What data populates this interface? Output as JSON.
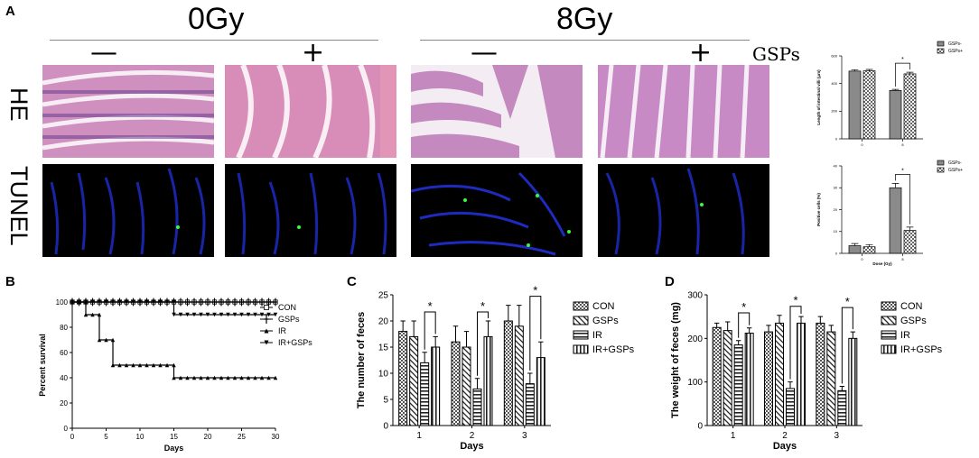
{
  "panels": {
    "a": {
      "label": "A"
    },
    "b": {
      "label": "B"
    },
    "c": {
      "label": "C"
    },
    "d": {
      "label": "D"
    }
  },
  "panel_a": {
    "dose_groups": [
      "0Gy",
      "8Gy"
    ],
    "treatment_signs": [
      "—",
      "+",
      "—",
      "+"
    ],
    "treatment_label": "GSPs",
    "row_labels": [
      "HE",
      "TUNEL"
    ]
  },
  "chart_data": [
    {
      "id": "villi",
      "type": "bar",
      "categories": [
        "0",
        "8"
      ],
      "series": [
        {
          "name": "GSPs-",
          "values": [
            490,
            350
          ],
          "errors": [
            10,
            8
          ]
        },
        {
          "name": "GSPs+",
          "values": [
            492,
            470
          ],
          "errors": [
            10,
            12
          ]
        }
      ],
      "xlabel": "",
      "ylabel": "Length of intestinal villi (μm)",
      "yticks": [
        0,
        200,
        400,
        600
      ],
      "ylim": [
        0,
        600
      ],
      "legend": "top-right",
      "significance": [
        {
          "category": "8",
          "label": "*"
        }
      ]
    },
    {
      "id": "positive",
      "type": "bar",
      "categories": [
        "0",
        "8"
      ],
      "series": [
        {
          "name": "GSPs-",
          "values": [
            3.5,
            30
          ],
          "errors": [
            1,
            2
          ]
        },
        {
          "name": "GSPs+",
          "values": [
            3,
            10.5
          ],
          "errors": [
            1,
            1.5
          ]
        }
      ],
      "xlabel": "Dose (Gy)",
      "ylabel": "Positive cells (%)",
      "yticks": [
        0,
        10,
        20,
        30,
        40
      ],
      "ylim": [
        0,
        40
      ],
      "legend": "top-right",
      "significance": [
        {
          "category": "8",
          "label": "*"
        }
      ]
    },
    {
      "id": "survival",
      "type": "line",
      "xlabel": "Days",
      "ylabel": "Percent survival",
      "xticks": [
        0,
        5,
        10,
        15,
        20,
        25,
        30
      ],
      "yticks": [
        0,
        20,
        40,
        60,
        80,
        100
      ],
      "xlim": [
        0,
        30
      ],
      "ylim": [
        0,
        100
      ],
      "legend": "right",
      "series": [
        {
          "name": "CON",
          "marker": "square",
          "steps": [
            [
              0,
              100
            ],
            [
              30,
              100
            ]
          ]
        },
        {
          "name": "GSPs",
          "marker": "plus",
          "steps": [
            [
              0,
              100
            ],
            [
              30,
              100
            ]
          ]
        },
        {
          "name": "IR",
          "marker": "triangle-up",
          "steps": [
            [
              0,
              100
            ],
            [
              2,
              100
            ],
            [
              2,
              90
            ],
            [
              4,
              90
            ],
            [
              4,
              70
            ],
            [
              6,
              70
            ],
            [
              6,
              50
            ],
            [
              15,
              50
            ],
            [
              15,
              40
            ],
            [
              30,
              40
            ]
          ]
        },
        {
          "name": "IR+GSPs",
          "marker": "triangle-down",
          "steps": [
            [
              0,
              100
            ],
            [
              15,
              100
            ],
            [
              15,
              90
            ],
            [
              30,
              90
            ]
          ]
        }
      ]
    },
    {
      "id": "feces_number",
      "type": "bar",
      "categories": [
        "1",
        "2",
        "3"
      ],
      "series": [
        {
          "name": "CON",
          "pattern": "checker",
          "values": [
            18,
            16,
            20
          ],
          "errors": [
            2,
            3,
            3
          ]
        },
        {
          "name": "GSPs",
          "pattern": "diagonal",
          "values": [
            17,
            15,
            19
          ],
          "errors": [
            3,
            3,
            4
          ]
        },
        {
          "name": "IR",
          "pattern": "horizontal",
          "values": [
            12,
            7,
            8
          ],
          "errors": [
            2,
            2,
            2
          ]
        },
        {
          "name": "IR+GSPs",
          "pattern": "vertical",
          "values": [
            15,
            17,
            13
          ],
          "errors": [
            2,
            3,
            3
          ]
        }
      ],
      "xlabel": "Days",
      "ylabel": "The number of feces",
      "yticks": [
        0,
        5,
        10,
        15,
        20,
        25
      ],
      "ylim": [
        0,
        25
      ],
      "legend": "right",
      "significance": [
        {
          "category": "1",
          "label": "*"
        },
        {
          "category": "2",
          "label": "*"
        },
        {
          "category": "3",
          "label": "*"
        }
      ]
    },
    {
      "id": "feces_weight",
      "type": "bar",
      "categories": [
        "1",
        "2",
        "3"
      ],
      "series": [
        {
          "name": "CON",
          "pattern": "checker",
          "values": [
            225,
            215,
            235
          ],
          "errors": [
            10,
            15,
            15
          ]
        },
        {
          "name": "GSPs",
          "pattern": "diagonal",
          "values": [
            218,
            235,
            215
          ],
          "errors": [
            20,
            18,
            15
          ]
        },
        {
          "name": "IR",
          "pattern": "horizontal",
          "values": [
            185,
            85,
            80
          ],
          "errors": [
            10,
            15,
            10
          ]
        },
        {
          "name": "IR+GSPs",
          "pattern": "vertical",
          "values": [
            212,
            235,
            200
          ],
          "errors": [
            12,
            15,
            15
          ]
        }
      ],
      "xlabel": "Days",
      "ylabel": "The weight of feces (mg)",
      "yticks": [
        0,
        100,
        200,
        300
      ],
      "ylim": [
        0,
        300
      ],
      "legend": "right",
      "significance": [
        {
          "category": "1",
          "label": "*"
        },
        {
          "category": "2",
          "label": "*"
        },
        {
          "category": "3",
          "label": "*"
        }
      ]
    }
  ]
}
